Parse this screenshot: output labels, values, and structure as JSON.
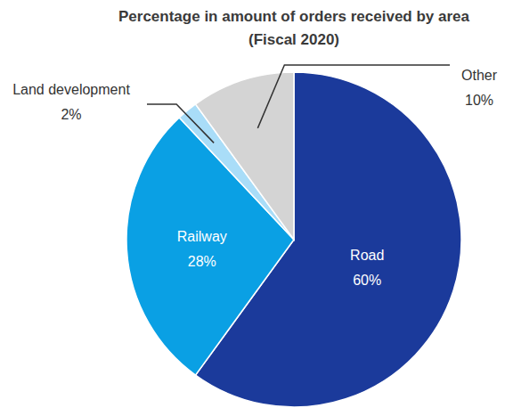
{
  "chart_data": {
    "type": "pie",
    "title": "Percentage in amount of orders received by area",
    "subtitle": "(Fiscal 2020)",
    "categories": [
      "Road",
      "Railway",
      "Land development",
      "Other"
    ],
    "values": [
      60,
      28,
      2,
      10
    ],
    "value_labels": [
      "60%",
      "28%",
      "2%",
      "10%"
    ],
    "colors": [
      "#1b3a9b",
      "#0aa0e4",
      "#a9ddf8",
      "#d4d4d4"
    ],
    "data_labels": true
  }
}
